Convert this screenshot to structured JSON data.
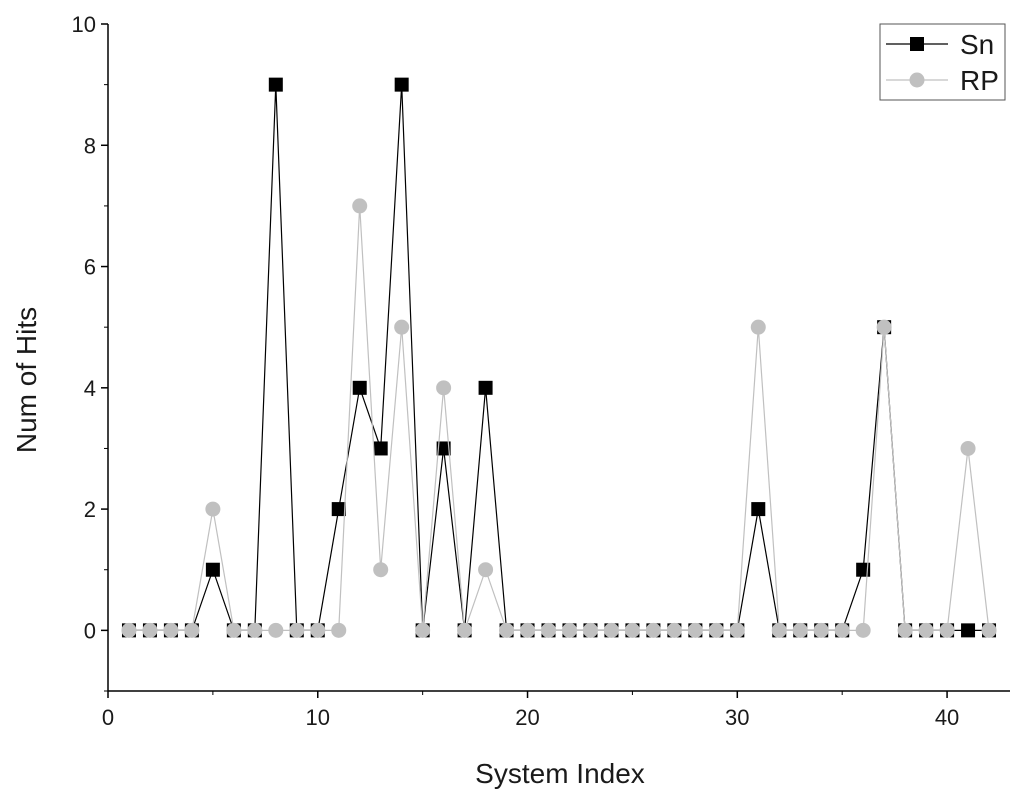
{
  "chart_data": {
    "type": "line",
    "title": "",
    "xlabel": "System Index",
    "ylabel": "Num of Hits",
    "xlim": [
      0,
      43
    ],
    "ylim": [
      -1,
      10
    ],
    "xticks": [
      0,
      10,
      20,
      30,
      40
    ],
    "yticks": [
      0,
      2,
      4,
      6,
      8,
      10
    ],
    "grid": false,
    "legend_position": "top-right",
    "x": [
      1,
      2,
      3,
      4,
      5,
      6,
      7,
      8,
      9,
      10,
      11,
      12,
      13,
      14,
      15,
      16,
      17,
      18,
      19,
      20,
      21,
      22,
      23,
      24,
      25,
      26,
      27,
      28,
      29,
      30,
      31,
      32,
      33,
      34,
      35,
      36,
      37,
      38,
      39,
      40,
      41,
      42
    ],
    "series": [
      {
        "name": "Sn",
        "marker": "square",
        "color": "#000000",
        "values": [
          0,
          0,
          0,
          0,
          1,
          0,
          0,
          9,
          0,
          0,
          2,
          4,
          3,
          9,
          0,
          3,
          0,
          4,
          0,
          0,
          0,
          0,
          0,
          0,
          0,
          0,
          0,
          0,
          0,
          0,
          2,
          0,
          0,
          0,
          0,
          1,
          5,
          0,
          0,
          0,
          0,
          0
        ]
      },
      {
        "name": "RP",
        "marker": "circle",
        "color": "#c0c0c0",
        "values": [
          0,
          0,
          0,
          0,
          2,
          0,
          0,
          0,
          0,
          0,
          0,
          7,
          1,
          5,
          0,
          4,
          0,
          1,
          0,
          0,
          0,
          0,
          0,
          0,
          0,
          0,
          0,
          0,
          0,
          0,
          5,
          0,
          0,
          0,
          0,
          0,
          5,
          0,
          0,
          0,
          3,
          0
        ]
      }
    ]
  }
}
